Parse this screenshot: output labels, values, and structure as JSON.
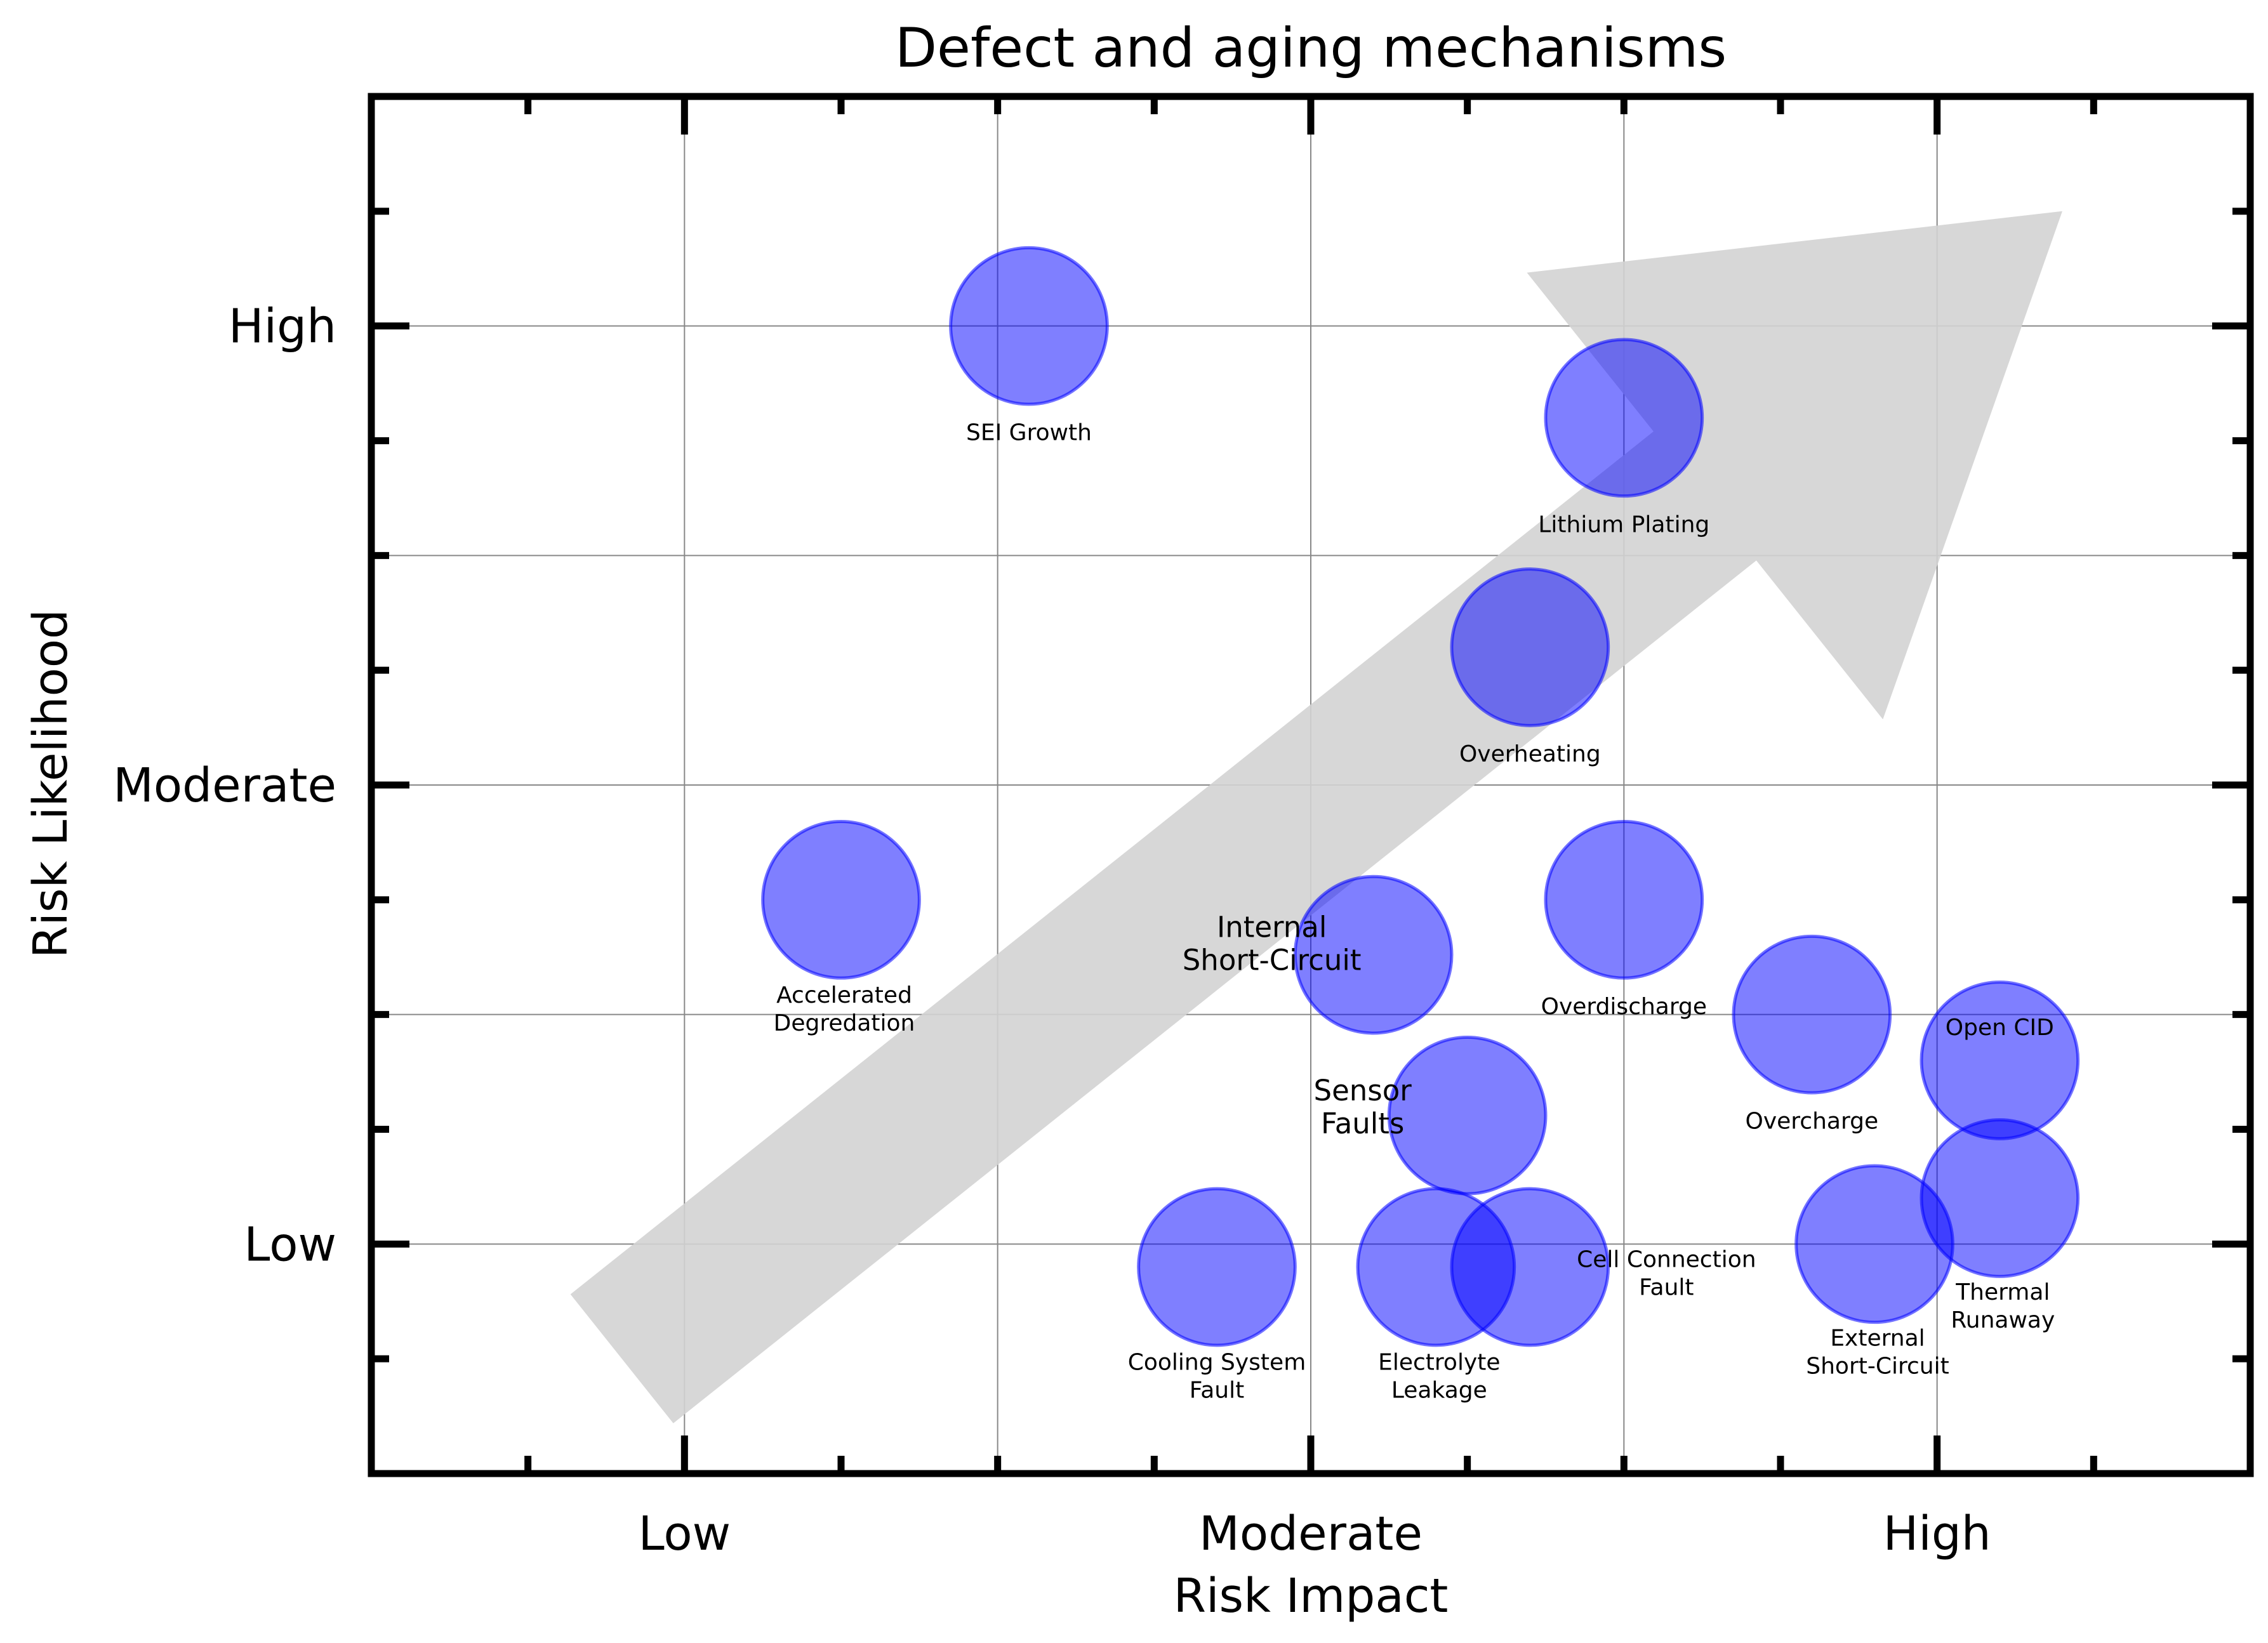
{
  "chart_data": {
    "type": "scatter",
    "title": "Defect and aging mechanisms",
    "xlabel": "Risk Impact",
    "ylabel": "Risk Likelihood",
    "xlim": [
      0.5,
      3.5
    ],
    "ylim": [
      0.5,
      3.5
    ],
    "x_ticks": [
      {
        "value": 1,
        "label": "Low"
      },
      {
        "value": 2,
        "label": "Moderate"
      },
      {
        "value": 3,
        "label": "High"
      }
    ],
    "y_ticks": [
      {
        "value": 1,
        "label": "Low"
      },
      {
        "value": 2,
        "label": "Moderate"
      },
      {
        "value": 3,
        "label": "High"
      }
    ],
    "grid": true,
    "marker_color": "#0000ff",
    "marker_alpha": 0.5,
    "arrow_color": "#d3d3d3",
    "arrow": {
      "from": [
        0.9,
        0.75
      ],
      "to": [
        3.2,
        3.25
      ]
    },
    "points": [
      {
        "name": "SEI Growth",
        "x": 1.55,
        "y": 3.0,
        "label_lines": [
          "SEI Growth"
        ]
      },
      {
        "name": "Lithium Plating",
        "x": 2.5,
        "y": 2.8,
        "label_lines": [
          "Lithium Plating"
        ]
      },
      {
        "name": "Overheating",
        "x": 2.35,
        "y": 2.3,
        "label_lines": [
          "Overheating"
        ]
      },
      {
        "name": "Accelerated Degredation",
        "x": 1.25,
        "y": 1.75,
        "label_lines": [
          "Accelerated",
          "Degredation"
        ]
      },
      {
        "name": "Internal Short-Circuit",
        "x": 2.1,
        "y": 1.63,
        "label_lines": [
          "Internal",
          "Short-Circuit"
        ]
      },
      {
        "name": "Overdischarge",
        "x": 2.5,
        "y": 1.75,
        "label_lines": [
          "Overdischarge"
        ]
      },
      {
        "name": "Overcharge",
        "x": 2.8,
        "y": 1.5,
        "label_lines": [
          "Overcharge"
        ]
      },
      {
        "name": "Sensor Faults",
        "x": 2.25,
        "y": 1.28,
        "label_lines": [
          "Sensor",
          "Faults"
        ]
      },
      {
        "name": "Open CID",
        "x": 3.1,
        "y": 1.4,
        "label_lines": [
          "Open CID"
        ]
      },
      {
        "name": "Thermal Runaway",
        "x": 3.1,
        "y": 1.1,
        "label_lines": [
          "Thermal",
          "Runaway"
        ]
      },
      {
        "name": "External Short-Circuit",
        "x": 2.9,
        "y": 1.0,
        "label_lines": [
          "External",
          "Short-Circuit"
        ]
      },
      {
        "name": "Cooling System Fault",
        "x": 1.85,
        "y": 0.95,
        "label_lines": [
          "Cooling System",
          "Fault"
        ]
      },
      {
        "name": "Electrolyte Leakage",
        "x": 2.2,
        "y": 0.95,
        "label_lines": [
          "Electrolyte",
          "Leakage"
        ]
      },
      {
        "name": "Cell Connection Fault",
        "x": 2.35,
        "y": 0.95,
        "label_lines": [
          "Cell Connection",
          "Fault"
        ]
      }
    ]
  }
}
